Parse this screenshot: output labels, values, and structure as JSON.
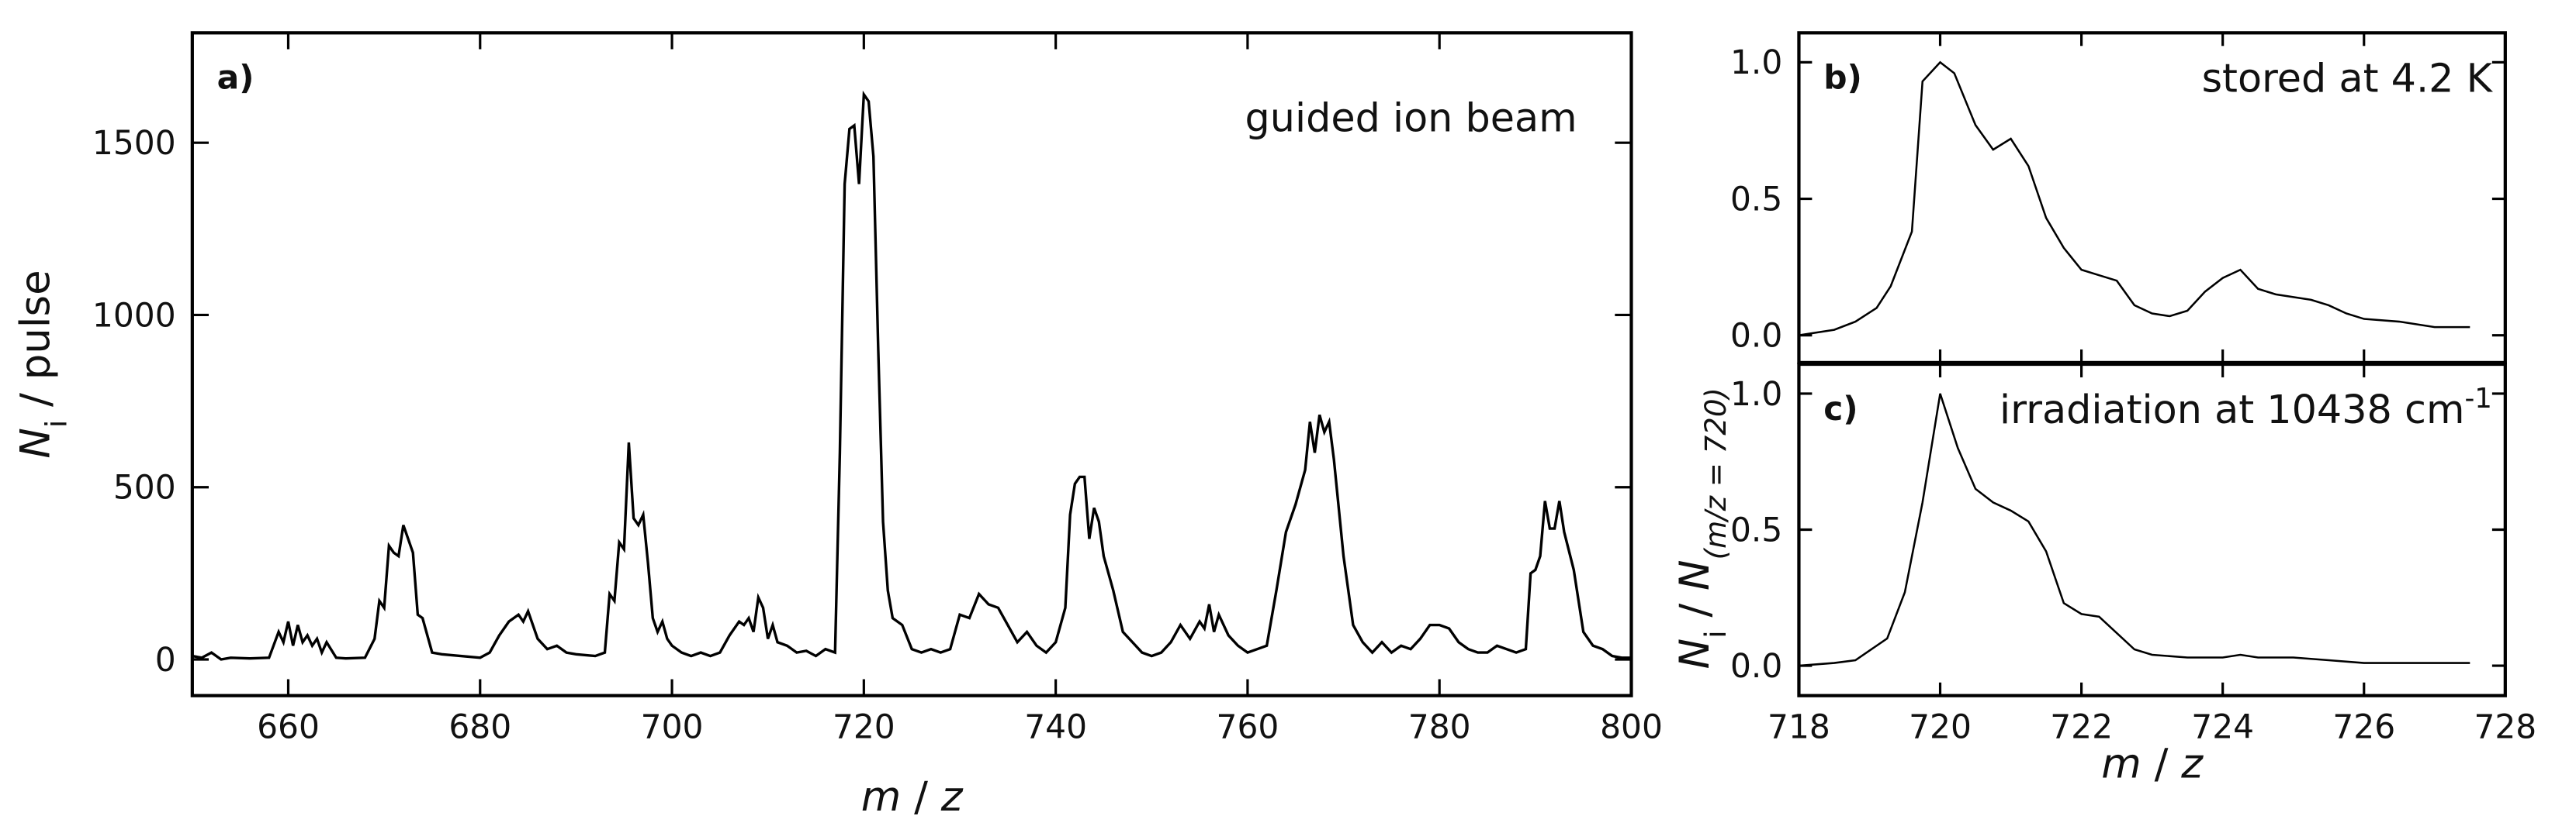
{
  "chart_data": [
    {
      "type": "line",
      "panel_label": "a)",
      "annotation": "guided ion beam",
      "x_label": [
        "m",
        " / ",
        "z"
      ],
      "y_label": [
        "N",
        "i",
        " / pulse"
      ],
      "xlim": [
        650,
        800
      ],
      "ylim": [
        -105,
        1819
      ],
      "xticks": [
        660,
        680,
        700,
        720,
        740,
        760,
        780,
        800
      ],
      "yticks": [
        0,
        500,
        1000,
        1500
      ],
      "color": "#000000",
      "x": [
        650,
        651,
        652,
        653,
        654,
        656,
        658,
        659,
        659.5,
        660,
        660.5,
        661,
        661.5,
        662,
        662.5,
        663,
        663.5,
        664,
        665,
        666,
        668,
        669,
        669.5,
        670,
        670.5,
        671,
        671.5,
        672,
        672.5,
        673,
        673.5,
        674,
        675,
        676,
        678,
        680,
        681,
        682,
        683,
        684,
        684.5,
        685,
        685.5,
        686,
        687,
        688,
        689,
        690,
        692,
        693,
        693.5,
        694,
        694.5,
        695,
        695.5,
        696,
        696.5,
        697,
        697.5,
        698,
        698.5,
        699,
        699.5,
        700,
        701,
        702,
        703,
        704,
        705,
        706,
        707,
        707.5,
        708,
        708.5,
        709,
        709.5,
        710,
        710.5,
        711,
        712,
        713,
        714,
        715,
        716,
        717,
        717.5,
        718,
        718.5,
        719,
        719.5,
        720,
        720.5,
        721,
        721.5,
        722,
        722.5,
        723,
        724,
        725,
        726,
        727,
        728,
        729,
        730,
        731,
        732,
        733,
        734,
        735,
        736,
        737,
        738,
        739,
        740,
        741,
        741.5,
        742,
        742.5,
        743,
        743.5,
        744,
        744.5,
        745,
        746,
        747,
        748,
        749,
        750,
        751,
        752,
        753,
        754,
        755,
        755.5,
        756,
        756.5,
        757,
        758,
        759,
        760,
        761,
        762,
        763,
        764,
        765,
        766,
        766.5,
        767,
        767.5,
        768,
        768.5,
        769,
        770,
        771,
        772,
        773,
        774,
        775,
        776,
        777,
        778,
        779,
        780,
        781,
        782,
        783,
        784,
        785,
        786,
        787,
        788,
        789,
        789.5,
        790,
        790.5,
        791,
        791.5,
        792,
        792.5,
        793,
        794,
        795,
        796,
        797,
        798,
        799,
        800
      ],
      "values": [
        10,
        5,
        20,
        0,
        5,
        3,
        5,
        80,
        50,
        110,
        40,
        100,
        50,
        70,
        40,
        60,
        20,
        50,
        5,
        3,
        5,
        60,
        170,
        150,
        330,
        310,
        300,
        390,
        350,
        310,
        130,
        120,
        20,
        15,
        10,
        5,
        20,
        70,
        110,
        130,
        110,
        140,
        100,
        60,
        30,
        40,
        20,
        15,
        10,
        20,
        190,
        170,
        340,
        320,
        630,
        410,
        390,
        420,
        280,
        120,
        80,
        110,
        60,
        40,
        20,
        10,
        20,
        10,
        20,
        70,
        110,
        100,
        120,
        80,
        180,
        150,
        60,
        100,
        50,
        40,
        20,
        25,
        10,
        30,
        20,
        600,
        1380,
        1540,
        1550,
        1380,
        1640,
        1620,
        1460,
        900,
        400,
        200,
        120,
        100,
        30,
        20,
        30,
        20,
        30,
        130,
        120,
        190,
        160,
        150,
        100,
        50,
        80,
        40,
        20,
        50,
        150,
        420,
        510,
        530,
        530,
        350,
        440,
        400,
        300,
        200,
        80,
        50,
        20,
        10,
        20,
        50,
        100,
        60,
        110,
        90,
        160,
        80,
        130,
        70,
        40,
        20,
        30,
        40,
        200,
        370,
        450,
        550,
        690,
        600,
        710,
        660,
        690,
        580,
        300,
        100,
        50,
        20,
        50,
        20,
        40,
        30,
        60,
        100,
        100,
        90,
        50,
        30,
        20,
        20,
        40,
        30,
        20,
        30,
        250,
        260,
        300,
        460,
        380,
        380,
        460,
        370,
        260,
        80,
        40,
        30,
        10,
        5,
        5
      ]
    },
    {
      "type": "line",
      "panel_label": "b)",
      "annotation": "stored at 4.2 K",
      "xlim": [
        718,
        728
      ],
      "ylim": [
        -0.1,
        1.108
      ],
      "show_xtick_labels": false,
      "xticks": [
        718,
        720,
        722,
        724,
        726,
        728
      ],
      "yticks": [
        {
          "value": 0,
          "label": "0.0"
        },
        {
          "value": 0.5,
          "label": "0.5"
        },
        {
          "value": 1,
          "label": "1.0"
        }
      ],
      "color": "#000000",
      "x": [
        718,
        718.5,
        718.8,
        719.1,
        719.3,
        719.6,
        719.75,
        720,
        720.2,
        720.5,
        720.75,
        721,
        721.25,
        721.5,
        721.75,
        722,
        722.25,
        722.5,
        722.75,
        723,
        723.25,
        723.5,
        723.75,
        724,
        724.25,
        724.5,
        724.75,
        725,
        725.25,
        725.5,
        725.75,
        726,
        726.5,
        727,
        727.5
      ],
      "values": [
        0,
        0.02,
        0.05,
        0.1,
        0.18,
        0.38,
        0.93,
        1.0,
        0.96,
        0.77,
        0.68,
        0.72,
        0.62,
        0.43,
        0.32,
        0.24,
        0.22,
        0.2,
        0.11,
        0.08,
        0.07,
        0.09,
        0.16,
        0.21,
        0.24,
        0.17,
        0.15,
        0.14,
        0.13,
        0.11,
        0.08,
        0.06,
        0.05,
        0.03,
        0.03
      ]
    },
    {
      "type": "line",
      "panel_label": "c)",
      "annotation": [
        "irradiation at 10438 cm",
        "-1"
      ],
      "x_label": [
        "m",
        " / ",
        "z"
      ],
      "y_label": [
        "N",
        "i",
        " / ",
        "N",
        "(m/z = 720)"
      ],
      "xlim": [
        718,
        728
      ],
      "ylim": [
        -0.11,
        1.108
      ],
      "show_xtick_labels": true,
      "xticks": [
        718,
        720,
        722,
        724,
        726,
        728
      ],
      "yticks": [
        {
          "value": 0,
          "label": "0.0"
        },
        {
          "value": 0.5,
          "label": "0.5"
        },
        {
          "value": 1,
          "label": "1.0"
        }
      ],
      "color": "#000000",
      "x": [
        718,
        718.5,
        718.8,
        719.25,
        719.5,
        719.75,
        720,
        720.25,
        720.5,
        720.75,
        721,
        721.25,
        721.5,
        721.75,
        722,
        722.25,
        722.5,
        722.75,
        723,
        723.5,
        724,
        724.25,
        724.5,
        725,
        725.5,
        726,
        727,
        727.5
      ],
      "values": [
        0,
        0.01,
        0.02,
        0.1,
        0.27,
        0.6,
        1.0,
        0.8,
        0.65,
        0.6,
        0.57,
        0.53,
        0.42,
        0.23,
        0.19,
        0.18,
        0.12,
        0.06,
        0.04,
        0.03,
        0.03,
        0.04,
        0.03,
        0.03,
        0.02,
        0.01,
        0.01,
        0.01
      ]
    }
  ]
}
